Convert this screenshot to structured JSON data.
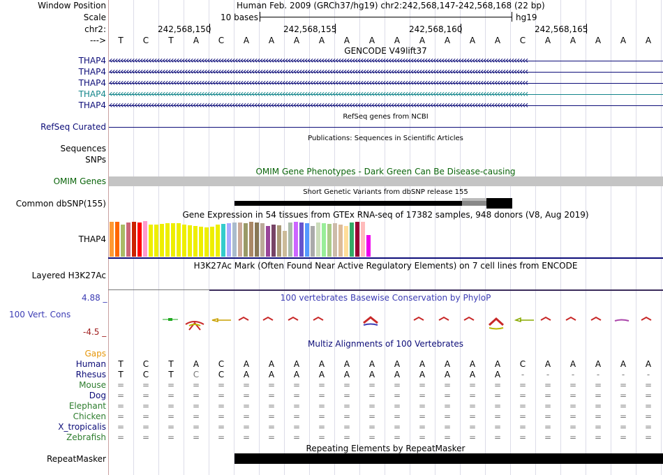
{
  "header": {
    "window_position_label": "Window Position",
    "window_position_value": "Human Feb. 2009 (GRCh37/hg19)   chr2:242,568,147-242,568,168 (22 bp)",
    "scale_label": "Scale",
    "scale_value": "10 bases",
    "scale_assembly": "hg19",
    "chrom_label": "chr2:",
    "strand_label": "--->",
    "positions": [
      "242,568,150",
      "242,568,155",
      "242,568,160",
      "242,568,165"
    ]
  },
  "sequence": [
    "T",
    "C",
    "T",
    "A",
    "C",
    "A",
    "A",
    "A",
    "A",
    "A",
    "A",
    "A",
    "A",
    "A",
    "A",
    "A",
    "C",
    "A",
    "A",
    "A",
    "A",
    "A"
  ],
  "gencode": {
    "title": "GENCODE V49lift37",
    "tracks": [
      {
        "label": "THAP4",
        "color": "#0c0c78"
      },
      {
        "label": "THAP4",
        "color": "#0c0c78"
      },
      {
        "label": "THAP4",
        "color": "#0c0c78"
      },
      {
        "label": "THAP4",
        "color": "#12858a"
      },
      {
        "label": "THAP4",
        "color": "#0c0c78"
      }
    ]
  },
  "refseq": {
    "title": "RefSeq genes from NCBI",
    "label": "RefSeq Curated"
  },
  "publications": {
    "title": "Publications: Sequences in Scientific Articles",
    "label": "Sequences"
  },
  "snps_label": "SNPs",
  "omim": {
    "title": "OMIM Gene Phenotypes - Dark Green Can Be Disease-causing",
    "label": "OMIM Genes"
  },
  "dbsnp": {
    "title": "Short Genetic Variants from dbSNP release 155",
    "label": "Common dbSNP(155)"
  },
  "gtex": {
    "title": "Gene Expression in 54 tissues from GTEx RNA-seq of 17382 samples, 948 donors (V8, Aug 2019)",
    "label": "THAP4",
    "bar_colors": [
      "#ff9933",
      "#ff6600",
      "#aabb66",
      "#cc6677",
      "#cc2200",
      "#ff0000",
      "#ff99cc",
      "#eeee00",
      "#eeee00",
      "#eeee00",
      "#eeee00",
      "#eeee00",
      "#eeee00",
      "#eeee00",
      "#eeee00",
      "#eeee00",
      "#eeee00",
      "#eeee00",
      "#eeee00",
      "#eeee00",
      "#33cccc",
      "#aaaaff",
      "#aabbcc",
      "#ccaa99",
      "#999966",
      "#aa8866",
      "#887755",
      "#bbaa99",
      "#994499",
      "#774466",
      "#aa9977",
      "#ccbb99",
      "#aabbaa",
      "#cc66ff",
      "#6655cc",
      "#5599ff",
      "#aaaaaa",
      "#ccddbb",
      "#99ee99",
      "#aacc88",
      "#ccbbaa",
      "#ddbb99",
      "#ffdd99",
      "#33aa66",
      "#990033",
      "#ffbbbb",
      "#ee00ee"
    ],
    "bar_values": [
      50,
      50,
      46,
      49,
      50,
      49,
      51,
      46,
      46,
      47,
      48,
      48,
      48,
      46,
      45,
      44,
      43,
      42,
      43,
      46,
      47,
      48,
      49,
      49,
      48,
      50,
      49,
      48,
      44,
      46,
      45,
      37,
      49,
      50,
      49,
      48,
      44,
      49,
      48,
      47,
      48,
      46,
      44,
      49,
      50,
      50,
      31
    ]
  },
  "h3k27ac": {
    "title": "H3K27Ac Mark (Often Found Near Active Regulatory Elements) on 7 cell lines from ENCODE",
    "label": "Layered H3K27Ac"
  },
  "conservation": {
    "title": "100 vertebrates Basewise Conservation by PhyloP",
    "label": "100 Vert. Cons",
    "max_label": "4.88 _",
    "min_label": "-4.5 _"
  },
  "multiz": {
    "title": "Multiz Alignments of 100 Vertebrates",
    "gaps_label": "Gaps",
    "species": [
      {
        "name": "Human",
        "color": "#0c0c78",
        "seq": [
          "T",
          "C",
          "T",
          "A",
          "C",
          "A",
          "A",
          "A",
          "A",
          "A",
          "A",
          "A",
          "A",
          "A",
          "A",
          "A",
          "C",
          "A",
          "A",
          "A",
          "A",
          "A"
        ]
      },
      {
        "name": "Rhesus",
        "color": "#0c0c78",
        "seq": [
          "T",
          "C",
          "T",
          "C",
          "C",
          "A",
          "A",
          "A",
          "A",
          "A",
          "A",
          "A",
          "A",
          "A",
          "A",
          "A",
          "-",
          "-",
          "-",
          "-",
          "-",
          "-"
        ]
      },
      {
        "name": "Mouse",
        "color": "#2e7d2e",
        "seq": [
          "=",
          "=",
          "=",
          "=",
          "=",
          "=",
          "=",
          "=",
          "=",
          "=",
          "=",
          "=",
          "=",
          "=",
          "=",
          "=",
          "=",
          "=",
          "=",
          "=",
          "=",
          "="
        ]
      },
      {
        "name": "Dog",
        "color": "#0c0c78",
        "seq": [
          "=",
          "=",
          "=",
          "=",
          "=",
          "=",
          "=",
          "=",
          "=",
          "=",
          "=",
          "=",
          "=",
          "=",
          "=",
          "=",
          "=",
          "=",
          "=",
          "=",
          "=",
          "="
        ]
      },
      {
        "name": "Elephant",
        "color": "#2e7d2e",
        "seq": [
          "=",
          "=",
          "=",
          "=",
          "=",
          "=",
          "=",
          "=",
          "=",
          "=",
          "=",
          "=",
          "=",
          "=",
          "=",
          "=",
          "=",
          "=",
          "=",
          "=",
          "=",
          "="
        ]
      },
      {
        "name": "Chicken",
        "color": "#2e7d2e",
        "seq": [
          "=",
          "=",
          "=",
          "=",
          "=",
          "=",
          "=",
          "=",
          "=",
          "=",
          "=",
          "=",
          "=",
          "=",
          "=",
          "=",
          "=",
          "=",
          "=",
          "=",
          "=",
          "="
        ]
      },
      {
        "name": "X_tropicalis",
        "color": "#0c0c78",
        "seq": [
          "=",
          "=",
          "=",
          "=",
          "=",
          "=",
          "=",
          "=",
          "=",
          "=",
          "=",
          "=",
          "=",
          "=",
          "=",
          "=",
          "=",
          "=",
          "=",
          "=",
          "=",
          "="
        ]
      },
      {
        "name": "Zebrafish",
        "color": "#2e7d2e",
        "seq": [
          "=",
          "=",
          "=",
          "=",
          "=",
          "=",
          "=",
          "=",
          "=",
          "=",
          "=",
          "=",
          "=",
          "=",
          "=",
          "=",
          "=",
          "=",
          "=",
          "=",
          "=",
          "="
        ]
      }
    ]
  },
  "repeatmasker": {
    "title": "Repeating Elements by RepeatMasker",
    "label": "RepeatMasker"
  },
  "colors": {
    "navy": "#0c0c78",
    "omim_green": "#0a640a",
    "gaps_orange": "#e6960a",
    "cons_blue": "#3c3cb4",
    "cons_red": "#a01e1e"
  }
}
